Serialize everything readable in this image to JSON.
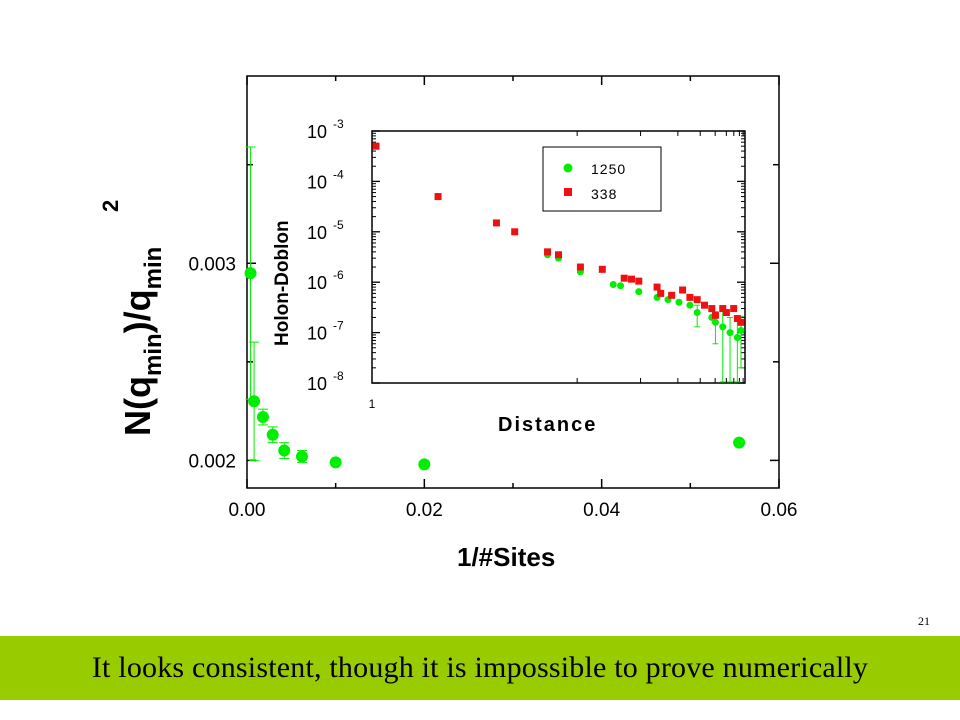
{
  "slide_number": "21",
  "caption": "It looks consistent, though it is impossible to prove numerically",
  "colors": {
    "caption_bar": "#99cc00",
    "green_series": "#00ee00",
    "red_series": "#ee1111"
  },
  "chart_data": [
    {
      "type": "scatter",
      "title": "",
      "xlabel": "1/#Sites",
      "ylabel_parts": {
        "open": "N(q",
        "sub1": "min",
        "mid": ")/q",
        "sub2": "min",
        "sup": "2"
      },
      "xlim": [
        0.0,
        0.06
      ],
      "ylim": [
        0.00186,
        0.00395
      ],
      "x_ticks": [
        0.0,
        0.02,
        0.04,
        0.06
      ],
      "x_tick_labels": [
        "0.00",
        "0.02",
        "0.04",
        "0.06"
      ],
      "y_ticks": [
        0.002,
        0.003
      ],
      "y_tick_labels": [
        "0.002",
        "0.003"
      ],
      "grid": false,
      "series": [
        {
          "color": "#00ee00",
          "marker": "circle",
          "points": [
            {
              "x": 0.0004,
              "y": 0.00295,
              "err": 0.00064
            },
            {
              "x": 0.0008,
              "y": 0.0023,
              "err": 0.0003
            },
            {
              "x": 0.0018,
              "y": 0.00222,
              "err": 4e-05
            },
            {
              "x": 0.0029,
              "y": 0.00213,
              "err": 4e-05
            },
            {
              "x": 0.0042,
              "y": 0.00205,
              "err": 4e-05
            },
            {
              "x": 0.0062,
              "y": 0.00202,
              "err": 3e-05
            },
            {
              "x": 0.01,
              "y": 0.00199,
              "err": 0.0
            },
            {
              "x": 0.02,
              "y": 0.00198,
              "err": 0.0
            },
            {
              "x": 0.0555,
              "y": 0.00209,
              "err": 0.0
            }
          ]
        }
      ]
    },
    {
      "type": "scatter",
      "title": "",
      "xlabel": "Distance",
      "ylabel": "Holon-Doblon",
      "y_scale": "log",
      "ylim": [
        1e-08,
        0.001
      ],
      "xlim": [
        0,
        1
      ],
      "x_tick_labels": [
        "1"
      ],
      "y_tick_labels": [
        {
          "base": "10",
          "exp": "-3"
        },
        {
          "base": "10",
          "exp": "-4"
        },
        {
          "base": "10",
          "exp": "-5"
        },
        {
          "base": "10",
          "exp": "-6"
        },
        {
          "base": "10",
          "exp": "-7"
        },
        {
          "base": "10",
          "exp": "-8"
        }
      ],
      "legend_position": "top-right",
      "series": [
        {
          "name": "1250",
          "color": "#00ee00",
          "marker": "circle",
          "points": [
            {
              "x": 0.47,
              "y": 3.5e-06
            },
            {
              "x": 0.5,
              "y": 3e-06
            },
            {
              "x": 0.56,
              "y": 1.6e-06
            },
            {
              "x": 0.65,
              "y": 9e-07
            },
            {
              "x": 0.67,
              "y": 8.5e-07
            },
            {
              "x": 0.72,
              "y": 6.5e-07
            },
            {
              "x": 0.77,
              "y": 5e-07
            },
            {
              "x": 0.8,
              "y": 4.5e-07
            },
            {
              "x": 0.83,
              "y": 4e-07
            },
            {
              "x": 0.86,
              "y": 3.5e-07
            },
            {
              "x": 0.88,
              "y": 2.5e-07,
              "err_low": 1.2e-07,
              "err_high": 1e-07
            },
            {
              "x": 0.92,
              "y": 2e-07
            },
            {
              "x": 0.93,
              "y": 1.6e-07,
              "err_low": 1e-07,
              "err_high": 1e-07
            },
            {
              "x": 0.95,
              "y": 1.3e-07,
              "err_low": 1.2e-07,
              "err_high": 2e-07
            },
            {
              "x": 0.97,
              "y": 1e-07,
              "err_low": 9e-08,
              "err_high": 1e-07
            },
            {
              "x": 0.99,
              "y": 8e-08,
              "err_low": 7e-08,
              "err_high": 1e-07
            },
            {
              "x": 1.0,
              "y": 1.1e-07,
              "err_low": 9e-08,
              "err_high": 1e-07
            }
          ]
        },
        {
          "name": "338",
          "color": "#ee1111",
          "marker": "square",
          "points": [
            {
              "x": 0.0,
              "y": 0.0005
            },
            {
              "x": 0.17,
              "y": 5e-05
            },
            {
              "x": 0.33,
              "y": 1.5e-05
            },
            {
              "x": 0.38,
              "y": 1e-05
            },
            {
              "x": 0.47,
              "y": 4e-06
            },
            {
              "x": 0.5,
              "y": 3.5e-06
            },
            {
              "x": 0.56,
              "y": 2e-06
            },
            {
              "x": 0.62,
              "y": 1.8e-06
            },
            {
              "x": 0.68,
              "y": 1.2e-06
            },
            {
              "x": 0.7,
              "y": 1.15e-06
            },
            {
              "x": 0.72,
              "y": 1.05e-06
            },
            {
              "x": 0.77,
              "y": 8e-07
            },
            {
              "x": 0.78,
              "y": 6e-07
            },
            {
              "x": 0.81,
              "y": 5.5e-07
            },
            {
              "x": 0.84,
              "y": 7e-07
            },
            {
              "x": 0.86,
              "y": 5e-07
            },
            {
              "x": 0.88,
              "y": 4.5e-07
            },
            {
              "x": 0.9,
              "y": 3.5e-07
            },
            {
              "x": 0.92,
              "y": 3e-07
            },
            {
              "x": 0.93,
              "y": 2.2e-07
            },
            {
              "x": 0.95,
              "y": 3e-07
            },
            {
              "x": 0.96,
              "y": 2.5e-07
            },
            {
              "x": 0.98,
              "y": 3e-07
            },
            {
              "x": 0.99,
              "y": 1.9e-07
            },
            {
              "x": 1.0,
              "y": 1.6e-07
            }
          ]
        }
      ]
    }
  ]
}
